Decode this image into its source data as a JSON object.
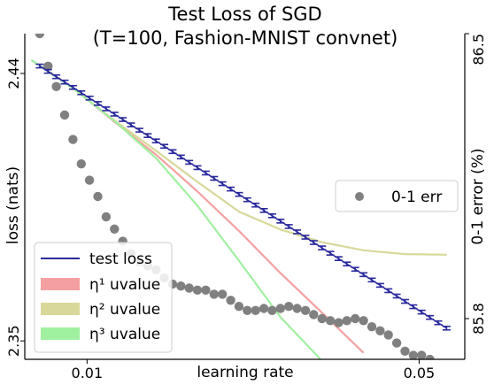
{
  "chart_data": {
    "type": "line",
    "title_line1": "Test Loss of SGD",
    "title_line2": "(T=100, Fashion-MNIST convnet)",
    "xlabel": "learning rate",
    "ylabel_left": "loss (nats)",
    "ylabel_right": "0-1 error (%)",
    "x_ticks": [
      "0.01",
      "0.05"
    ],
    "y_left_ticks": [
      "2.35",
      "2.44"
    ],
    "y_right_ticks": [
      "85.8",
      "86.5"
    ],
    "xlim": [
      0.0025,
      0.0555
    ],
    "ylim_left": [
      2.3438,
      2.4534
    ],
    "ylim_right": [
      85.7,
      86.5
    ],
    "grid": false,
    "colors": {
      "test_loss": "#2b2b9e",
      "eta1": "#f4a0a0",
      "eta2": "#d8d89a",
      "eta3": "#a0f0a0",
      "err": "#808080"
    },
    "test_loss": {
      "name": "test loss",
      "x": [
        0.0043,
        0.0053,
        0.0063,
        0.0073,
        0.0083,
        0.0093,
        0.0103,
        0.0113,
        0.0123,
        0.0133,
        0.0143,
        0.0153,
        0.0163,
        0.0173,
        0.0183,
        0.0193,
        0.0203,
        0.0213,
        0.0223,
        0.0233,
        0.0243,
        0.0253,
        0.0263,
        0.0273,
        0.0283,
        0.0293,
        0.0303,
        0.0313,
        0.0323,
        0.0333,
        0.0343,
        0.0353,
        0.0363,
        0.0373,
        0.0383,
        0.0393,
        0.0403,
        0.0413,
        0.0423,
        0.0433,
        0.0443,
        0.0453,
        0.0463,
        0.0473,
        0.0483,
        0.0493,
        0.0503,
        0.0513,
        0.0523,
        0.0533
      ],
      "y": [
        2.4425,
        2.4407,
        2.4389,
        2.4371,
        2.4353,
        2.4335,
        2.4317,
        2.4299,
        2.4281,
        2.4263,
        2.4245,
        2.4227,
        2.4209,
        2.4191,
        2.4173,
        2.4155,
        2.4137,
        2.4119,
        2.4101,
        2.4083,
        2.4065,
        2.4047,
        2.4029,
        2.4011,
        2.3993,
        2.3975,
        2.3957,
        2.3939,
        2.3921,
        2.3903,
        2.3885,
        2.3867,
        2.3849,
        2.3831,
        2.3813,
        2.3795,
        2.3777,
        2.3759,
        2.3741,
        2.3723,
        2.3705,
        2.3687,
        2.3669,
        2.3651,
        2.3633,
        2.3615,
        2.3597,
        2.3579,
        2.3561,
        2.3543
      ],
      "err": 0.0006
    },
    "uvalue_curves": [
      {
        "name": "η¹ uvalue",
        "x": [
          0.0033,
          0.0083,
          0.0133,
          0.0183,
          0.0233,
          0.0283,
          0.0333,
          0.0383,
          0.0433
        ],
        "y": [
          2.4445,
          2.4352,
          2.4237,
          2.4127,
          2.4003,
          2.387,
          2.3728,
          2.3595,
          2.346
        ]
      },
      {
        "name": "η² uvalue",
        "x": [
          0.0033,
          0.0083,
          0.0133,
          0.0183,
          0.0233,
          0.0283,
          0.0333,
          0.0383,
          0.0433,
          0.0483,
          0.0533
        ],
        "y": [
          2.4445,
          2.435,
          2.4242,
          2.414,
          2.4035,
          2.3935,
          2.3875,
          2.3832,
          2.3805,
          2.3792,
          2.379
        ]
      },
      {
        "name": "η³ uvalue",
        "x": [
          0.0033,
          0.0083,
          0.0133,
          0.0183,
          0.0233,
          0.0283,
          0.0333,
          0.0383
        ],
        "y": [
          2.4445,
          2.435,
          2.424,
          2.4115,
          2.3955,
          2.377,
          2.358,
          2.3433
        ]
      }
    ],
    "error_rate": {
      "name": "0-1 err",
      "x": [
        0.0043,
        0.0053,
        0.0063,
        0.0073,
        0.0083,
        0.0093,
        0.0103,
        0.0113,
        0.0123,
        0.0133,
        0.0143,
        0.0153,
        0.0163,
        0.0173,
        0.0183,
        0.0193,
        0.0203,
        0.0213,
        0.0223,
        0.0233,
        0.0243,
        0.0253,
        0.0263,
        0.0273,
        0.0283,
        0.0293,
        0.0303,
        0.0313,
        0.0323,
        0.0333,
        0.0343,
        0.0353,
        0.0363,
        0.0373,
        0.0383,
        0.0393,
        0.0403,
        0.0413,
        0.0423,
        0.0433,
        0.0443,
        0.0453,
        0.0463,
        0.0473,
        0.0483,
        0.0493,
        0.0503,
        0.0513,
        0.0523,
        0.0533
      ],
      "y": [
        86.5,
        86.42,
        86.37,
        86.3,
        86.24,
        86.18,
        86.14,
        86.1,
        86.05,
        86.02,
        85.99,
        85.96,
        85.94,
        85.93,
        85.92,
        85.9,
        85.885,
        85.88,
        85.875,
        85.87,
        85.87,
        85.86,
        85.86,
        85.845,
        85.83,
        85.82,
        85.82,
        85.825,
        85.82,
        85.825,
        85.83,
        85.825,
        85.82,
        85.81,
        85.8,
        85.795,
        85.79,
        85.795,
        85.8,
        85.795,
        85.78,
        85.77,
        85.76,
        85.74,
        85.72,
        85.71,
        85.71,
        85.7,
        85.69,
        85.68
      ]
    },
    "legend_lower_left": [
      {
        "label": "test loss",
        "kind": "line",
        "color_key": "test_loss"
      },
      {
        "label": "η¹ uvalue",
        "kind": "patch",
        "color_key": "eta1"
      },
      {
        "label": "η² uvalue",
        "kind": "patch",
        "color_key": "eta2"
      },
      {
        "label": "η³ uvalue",
        "kind": "patch",
        "color_key": "eta3"
      }
    ],
    "legend_right": [
      {
        "label": "0-1 err",
        "kind": "marker",
        "color_key": "err"
      }
    ]
  }
}
